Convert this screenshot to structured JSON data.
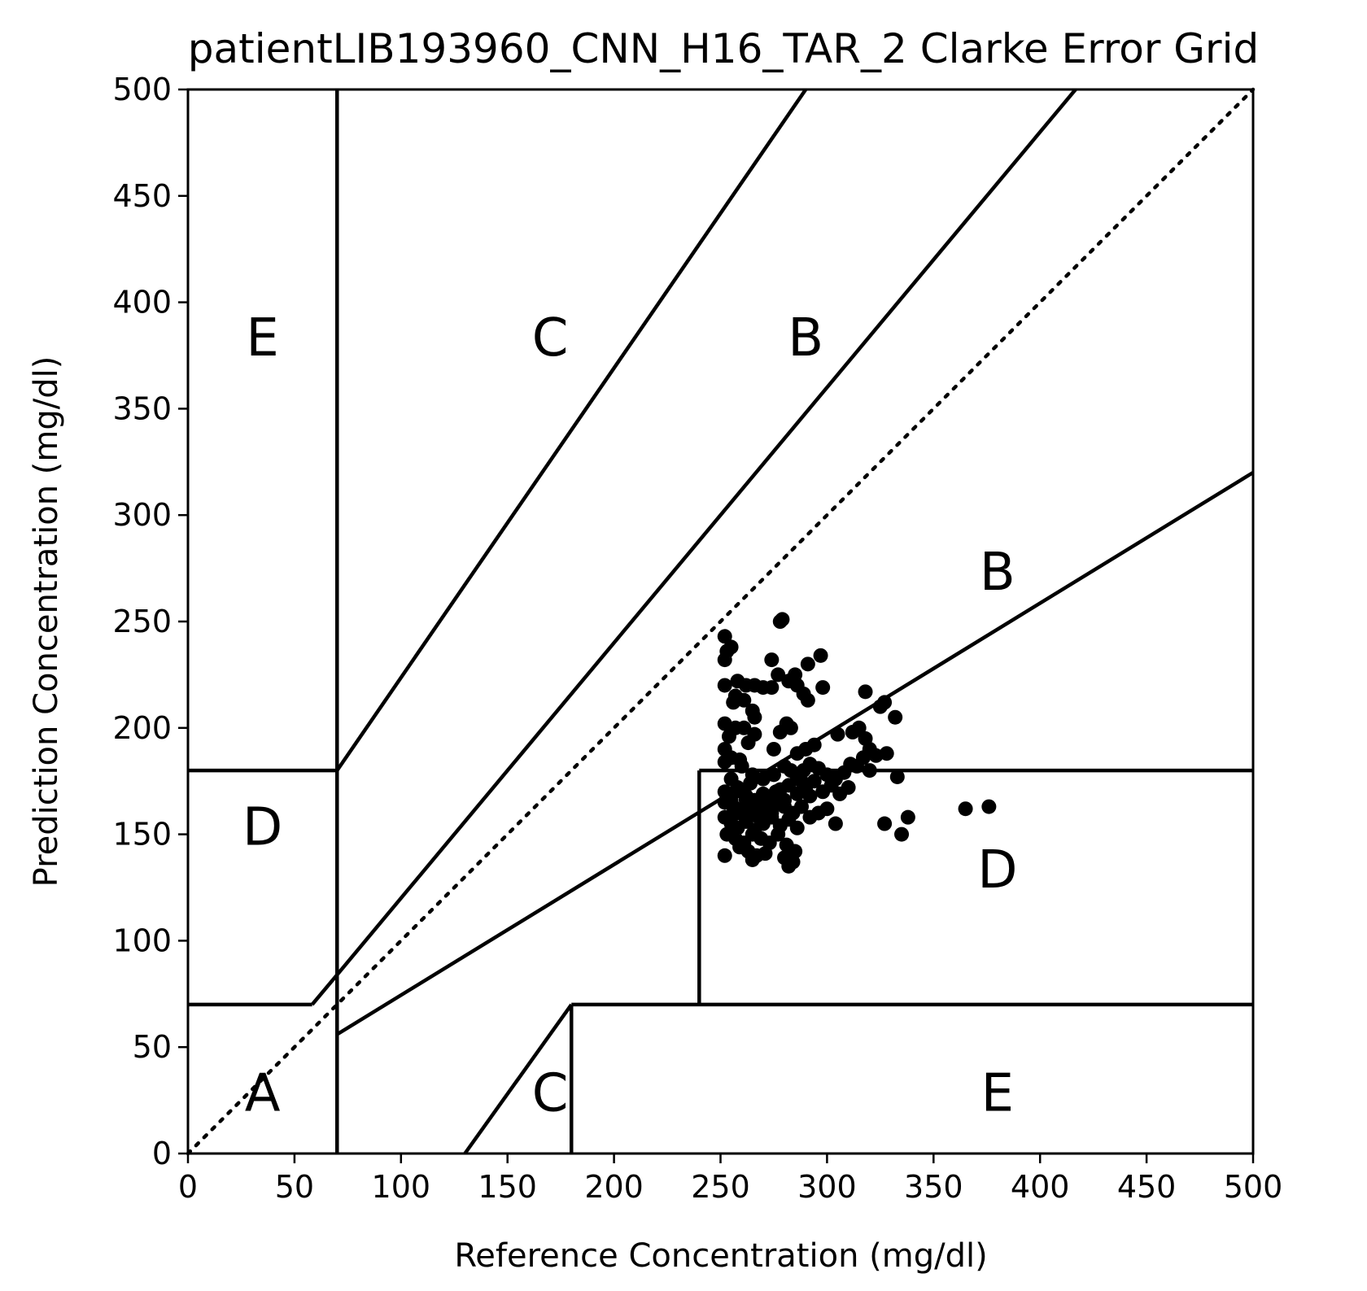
{
  "chart_data": {
    "type": "scatter",
    "title": "patientLIB193960_CNN_H16_TAR_2 Clarke Error Grid",
    "xlabel": "Reference Concentration (mg/dl)",
    "ylabel": "Prediction Concentration (mg/dl)",
    "xlim": [
      0,
      500
    ],
    "ylim": [
      0,
      500
    ],
    "xticks": [
      "0",
      "50",
      "100",
      "150",
      "200",
      "250",
      "300",
      "350",
      "400",
      "450",
      "500"
    ],
    "yticks": [
      "0",
      "50",
      "100",
      "150",
      "200",
      "250",
      "300",
      "350",
      "400",
      "450",
      "500"
    ],
    "grid": false,
    "zone_labels": [
      {
        "text": "A",
        "x": 35,
        "y": 20
      },
      {
        "text": "B",
        "x": 290,
        "y": 375
      },
      {
        "text": "B",
        "x": 380,
        "y": 265
      },
      {
        "text": "C",
        "x": 170,
        "y": 375
      },
      {
        "text": "C",
        "x": 170,
        "y": 20
      },
      {
        "text": "D",
        "x": 35,
        "y": 145
      },
      {
        "text": "D",
        "x": 380,
        "y": 125
      },
      {
        "text": "E",
        "x": 35,
        "y": 375
      },
      {
        "text": "E",
        "x": 380,
        "y": 20
      }
    ],
    "zone_lines": [
      [
        [
          0,
          70
        ],
        [
          58.3,
          70
        ]
      ],
      [
        [
          58.3,
          70
        ],
        [
          70,
          84
        ]
      ],
      [
        [
          70,
          84
        ],
        [
          416.67,
          500
        ]
      ],
      [
        [
          70,
          180
        ],
        [
          290,
          500
        ]
      ],
      [
        [
          0,
          180
        ],
        [
          70,
          180
        ]
      ],
      [
        [
          70,
          0
        ],
        [
          70,
          500
        ]
      ],
      [
        [
          70,
          56
        ],
        [
          500,
          320
        ]
      ],
      [
        [
          130,
          0
        ],
        [
          180,
          70
        ]
      ],
      [
        [
          180,
          0
        ],
        [
          180,
          70
        ]
      ],
      [
        [
          180,
          70
        ],
        [
          500,
          70
        ]
      ],
      [
        [
          240,
          70
        ],
        [
          240,
          180
        ]
      ],
      [
        [
          240,
          180
        ],
        [
          500,
          180
        ]
      ]
    ],
    "identity_line": [
      [
        0,
        0
      ],
      [
        500,
        500
      ]
    ],
    "points": [
      [
        252,
        243
      ],
      [
        253,
        236
      ],
      [
        255,
        238
      ],
      [
        252,
        232
      ],
      [
        278,
        250
      ],
      [
        279,
        251
      ],
      [
        274,
        232
      ],
      [
        297,
        234
      ],
      [
        291,
        230
      ],
      [
        285,
        225
      ],
      [
        277,
        225
      ],
      [
        282,
        222
      ],
      [
        286,
        220
      ],
      [
        289,
        216
      ],
      [
        291,
        213
      ],
      [
        298,
        219
      ],
      [
        318,
        217
      ],
      [
        252,
        220
      ],
      [
        258,
        222
      ],
      [
        262,
        220
      ],
      [
        266,
        220
      ],
      [
        270,
        219
      ],
      [
        274,
        219
      ],
      [
        257,
        215
      ],
      [
        256,
        212
      ],
      [
        261,
        213
      ],
      [
        265,
        208
      ],
      [
        266,
        205
      ],
      [
        252,
        202
      ],
      [
        257,
        200
      ],
      [
        261,
        200
      ],
      [
        266,
        197
      ],
      [
        278,
        198
      ],
      [
        281,
        202
      ],
      [
        283,
        200
      ],
      [
        254,
        196
      ],
      [
        263,
        193
      ],
      [
        275,
        190
      ],
      [
        252,
        190
      ],
      [
        255,
        186
      ],
      [
        259,
        185
      ],
      [
        252,
        184
      ],
      [
        286,
        188
      ],
      [
        290,
        190
      ],
      [
        294,
        192
      ],
      [
        305,
        197
      ],
      [
        312,
        198
      ],
      [
        315,
        200
      ],
      [
        318,
        195
      ],
      [
        320,
        190
      ],
      [
        323,
        187
      ],
      [
        328,
        188
      ],
      [
        327,
        212
      ],
      [
        332,
        205
      ],
      [
        325,
        210
      ],
      [
        260,
        182
      ],
      [
        265,
        178
      ],
      [
        270,
        176
      ],
      [
        275,
        178
      ],
      [
        280,
        182
      ],
      [
        283,
        180
      ],
      [
        286,
        177
      ],
      [
        289,
        180
      ],
      [
        292,
        183
      ],
      [
        296,
        181
      ],
      [
        300,
        178
      ],
      [
        304,
        176
      ],
      [
        308,
        179
      ],
      [
        311,
        183
      ],
      [
        314,
        182
      ],
      [
        317,
        186
      ],
      [
        320,
        180
      ],
      [
        333,
        177
      ],
      [
        255,
        176
      ],
      [
        252,
        170
      ],
      [
        258,
        172
      ],
      [
        262,
        168
      ],
      [
        266,
        166
      ],
      [
        270,
        169
      ],
      [
        274,
        167
      ],
      [
        278,
        171
      ],
      [
        282,
        173
      ],
      [
        286,
        169
      ],
      [
        290,
        172
      ],
      [
        294,
        175
      ],
      [
        298,
        170
      ],
      [
        302,
        173
      ],
      [
        306,
        169
      ],
      [
        310,
        172
      ],
      [
        252,
        165
      ],
      [
        256,
        163
      ],
      [
        260,
        161
      ],
      [
        264,
        164
      ],
      [
        268,
        160
      ],
      [
        272,
        162
      ],
      [
        276,
        165
      ],
      [
        280,
        163
      ],
      [
        284,
        160
      ],
      [
        288,
        163
      ],
      [
        292,
        158
      ],
      [
        296,
        160
      ],
      [
        300,
        162
      ],
      [
        304,
        155
      ],
      [
        252,
        158
      ],
      [
        255,
        155
      ],
      [
        258,
        153
      ],
      [
        262,
        156
      ],
      [
        266,
        152
      ],
      [
        270,
        155
      ],
      [
        274,
        158
      ],
      [
        278,
        154
      ],
      [
        282,
        157
      ],
      [
        286,
        153
      ],
      [
        253,
        150
      ],
      [
        257,
        148
      ],
      [
        261,
        146
      ],
      [
        265,
        150
      ],
      [
        269,
        148
      ],
      [
        273,
        146
      ],
      [
        277,
        150
      ],
      [
        281,
        145
      ],
      [
        285,
        142
      ],
      [
        259,
        144
      ],
      [
        263,
        142
      ],
      [
        267,
        140
      ],
      [
        271,
        141
      ],
      [
        252,
        140
      ],
      [
        265,
        138
      ],
      [
        280,
        139
      ],
      [
        282,
        135
      ],
      [
        284,
        137
      ],
      [
        327,
        155
      ],
      [
        335,
        150
      ],
      [
        338,
        158
      ],
      [
        365,
        162
      ],
      [
        376,
        163
      ],
      [
        260,
        170
      ],
      [
        264,
        174
      ],
      [
        268,
        158
      ],
      [
        272,
        162
      ],
      [
        276,
        170
      ],
      [
        280,
        166
      ],
      [
        288,
        175
      ],
      [
        292,
        168
      ],
      [
        255,
        166
      ],
      [
        258,
        160
      ],
      [
        262,
        166
      ],
      [
        266,
        160
      ],
      [
        270,
        164
      ],
      [
        274,
        160
      ]
    ]
  }
}
